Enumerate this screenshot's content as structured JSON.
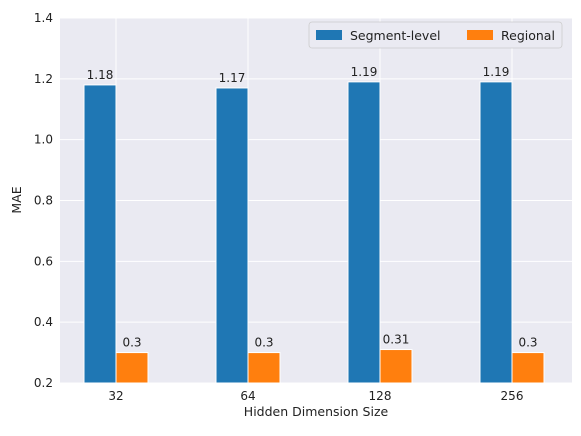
{
  "chart_data": {
    "type": "bar",
    "title": "",
    "xlabel": "Hidden Dimension Size",
    "ylabel": "MAE",
    "categories": [
      "32",
      "64",
      "128",
      "256"
    ],
    "series": [
      {
        "name": "Segment-level",
        "values": [
          1.18,
          1.17,
          1.19,
          1.19
        ],
        "labels": [
          "1.18",
          "1.17",
          "1.19",
          "1.19"
        ],
        "color": "#1f77b4"
      },
      {
        "name": "Regional",
        "values": [
          0.3,
          0.3,
          0.31,
          0.3
        ],
        "labels": [
          "0.3",
          "0.3",
          "0.31",
          "0.3"
        ],
        "color": "#ff7f0e"
      }
    ],
    "ylim": [
      0.2,
      1.4
    ],
    "yticks": [
      "0.2",
      "0.4",
      "0.6",
      "0.8",
      "1.0",
      "1.2",
      "1.4"
    ],
    "grid": true,
    "legend": "top-right",
    "background": "#eaeaf2",
    "grid_color": "#ffffff"
  }
}
